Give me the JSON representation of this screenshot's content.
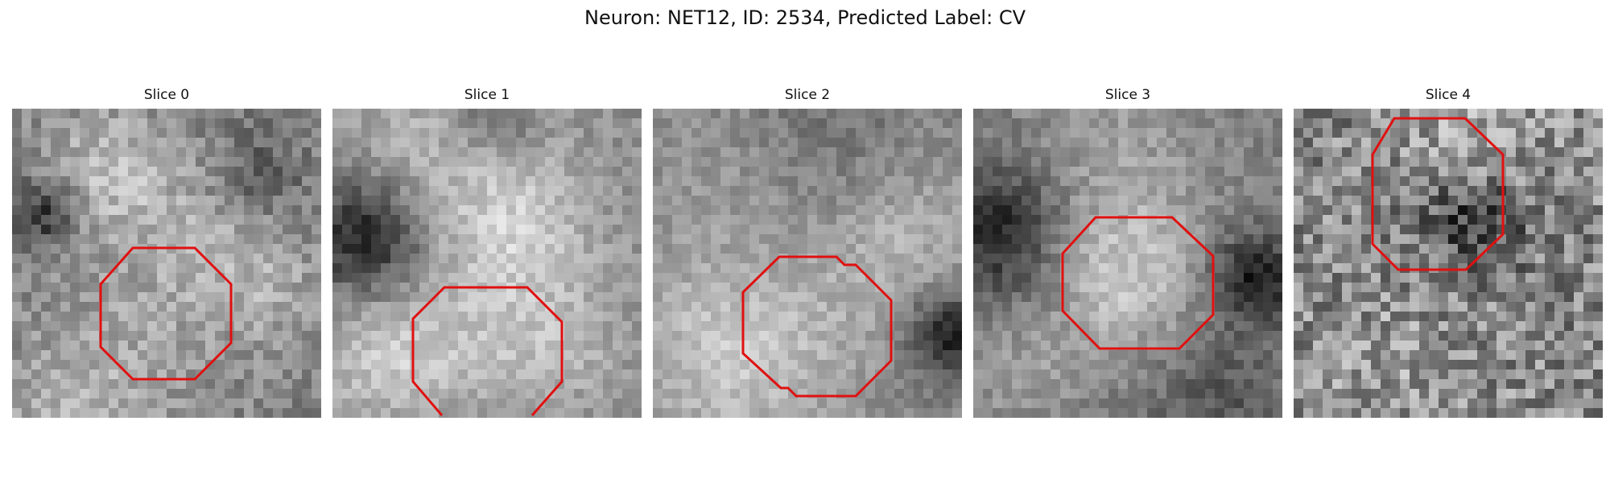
{
  "figure": {
    "title": "Neuron: NET12, ID: 2534, Predicted Label: CV"
  },
  "panels": [
    {
      "title": "Slice 0"
    },
    {
      "title": "Slice 1"
    },
    {
      "title": "Slice 2"
    },
    {
      "title": "Slice 3"
    },
    {
      "title": "Slice 4"
    }
  ],
  "colors": {
    "outline": "#e01010",
    "background": "#ffffff"
  }
}
